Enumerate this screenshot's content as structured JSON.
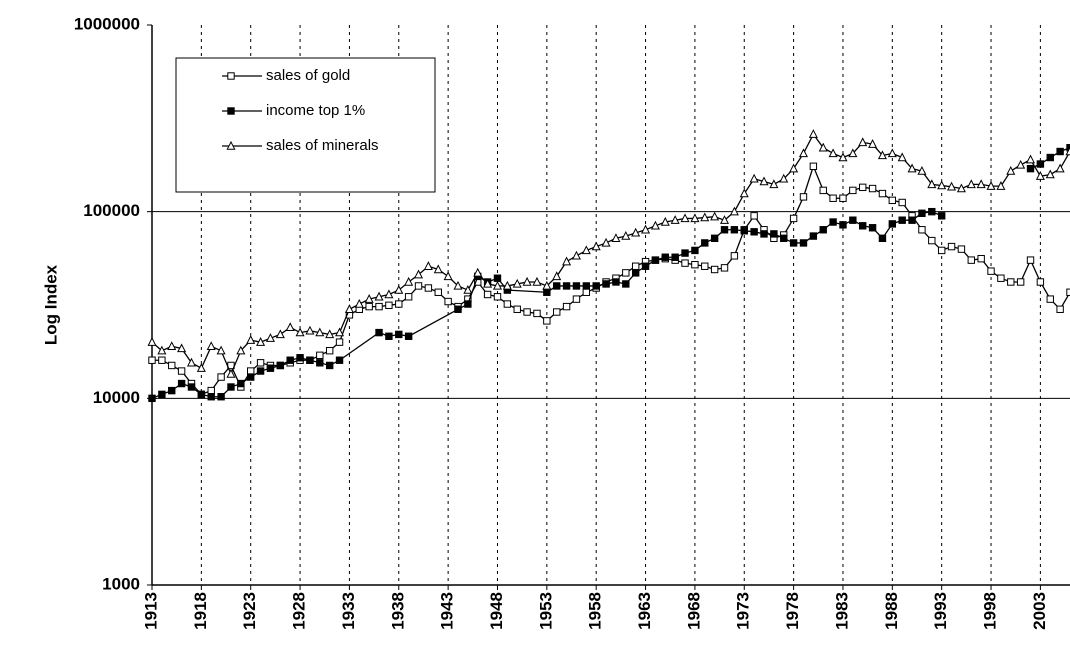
{
  "chart_data": {
    "type": "line",
    "y_label": "Log Index",
    "log_scale": true,
    "grid": true,
    "x": [
      1913,
      1914,
      1915,
      1916,
      1917,
      1918,
      1919,
      1920,
      1921,
      1922,
      1923,
      1924,
      1925,
      1926,
      1927,
      1928,
      1929,
      1930,
      1931,
      1932,
      1933,
      1934,
      1935,
      1936,
      1937,
      1938,
      1939,
      1940,
      1941,
      1942,
      1943,
      1944,
      1945,
      1946,
      1947,
      1948,
      1949,
      1950,
      1951,
      1952,
      1953,
      1954,
      1955,
      1956,
      1957,
      1958,
      1959,
      1960,
      1961,
      1962,
      1963,
      1964,
      1965,
      1966,
      1967,
      1968,
      1969,
      1970,
      1971,
      1972,
      1973,
      1974,
      1975,
      1976,
      1977,
      1978,
      1979,
      1980,
      1981,
      1982,
      1983,
      1984,
      1985,
      1986,
      1987,
      1988,
      1989,
      1990,
      1991,
      1992,
      1993,
      1994,
      1995,
      1996,
      1997,
      1998,
      1999,
      2000,
      2001,
      2002,
      2003,
      2004,
      2005,
      2006
    ],
    "xlim": [
      1913,
      2006
    ],
    "xticks": [
      1913,
      1918,
      1923,
      1928,
      1933,
      1938,
      1943,
      1948,
      1953,
      1958,
      1963,
      1968,
      1973,
      1978,
      1983,
      1988,
      1993,
      1998,
      2003
    ],
    "ylim": [
      1000,
      1000000
    ],
    "yticks": [
      1000,
      10000,
      100000,
      1000000
    ],
    "series": [
      {
        "name": "sales of gold",
        "color": "#000000",
        "marker": "square-open",
        "values": [
          16000,
          16000,
          15000,
          14000,
          12000,
          10500,
          11000,
          13000,
          15000,
          11500,
          14000,
          15500,
          15000,
          15000,
          15500,
          16000,
          16000,
          17000,
          18000,
          20000,
          28000,
          30000,
          31000,
          31000,
          31500,
          32000,
          35000,
          40000,
          39000,
          37000,
          33000,
          31000,
          34000,
          42000,
          36000,
          35000,
          32000,
          30000,
          29000,
          28500,
          26000,
          29000,
          31000,
          34000,
          37000,
          39000,
          42000,
          44000,
          47000,
          51000,
          54000,
          55000,
          56000,
          55000,
          53000,
          52000,
          51000,
          49000,
          50000,
          58000,
          80000,
          95000,
          80000,
          72000,
          75000,
          92000,
          120000,
          175000,
          130000,
          118000,
          118000,
          130000,
          135000,
          133000,
          125000,
          115000,
          112000,
          95000,
          80000,
          70000,
          62000,
          65000,
          63000,
          55000,
          56000,
          48000,
          44000,
          42000,
          42000,
          55000,
          42000,
          34000,
          30000,
          37000
        ]
      },
      {
        "name": "income top 1%",
        "color": "#000000",
        "marker": "square-filled",
        "x": [
          1913,
          1914,
          1915,
          1916,
          1917,
          1918,
          1919,
          1920,
          1921,
          1922,
          1923,
          1924,
          1925,
          1926,
          1927,
          1928,
          1929,
          1930,
          1931,
          1932,
          1936,
          1937,
          1938,
          1939,
          1944,
          1945,
          1946,
          1947,
          1948,
          1949,
          1953,
          1954,
          1955,
          1956,
          1957,
          1958,
          1959,
          1960,
          1961,
          1962,
          1963,
          1964,
          1965,
          1966,
          1967,
          1968,
          1969,
          1970,
          1971,
          1972,
          1973,
          1974,
          1975,
          1976,
          1977,
          1978,
          1979,
          1980,
          1981,
          1982,
          1983,
          1984,
          1985,
          1986,
          1987,
          1988,
          1989,
          1990,
          1991,
          1992,
          1993,
          1997,
          2002,
          2003,
          2004,
          2005,
          2006
        ],
        "values": [
          10000,
          10500,
          11000,
          12000,
          11500,
          10500,
          10200,
          10200,
          11500,
          12000,
          13000,
          14000,
          14500,
          15000,
          16000,
          16500,
          16000,
          15500,
          15000,
          16000,
          22500,
          21500,
          22000,
          21500,
          30000,
          32000,
          45000,
          42000,
          44000,
          38000,
          37000,
          40000,
          40000,
          40000,
          40000,
          40000,
          41000,
          42000,
          41000,
          47000,
          51000,
          55000,
          57000,
          57000,
          60000,
          62000,
          68000,
          72000,
          80000,
          80000,
          79000,
          78000,
          76000,
          76000,
          72000,
          68000,
          68000,
          74000,
          80000,
          88000,
          85000,
          90000,
          84000,
          82000,
          72000,
          86000,
          90000,
          90000,
          98000,
          100000,
          95000,
          null,
          170000,
          180000,
          195000,
          210000,
          220000
        ]
      },
      {
        "name": "sales of minerals",
        "color": "#000000",
        "marker": "triangle-open",
        "values": [
          20000,
          18000,
          19000,
          18500,
          15500,
          14500,
          19000,
          18000,
          13500,
          18000,
          20500,
          20000,
          21000,
          22000,
          24000,
          22500,
          23000,
          22500,
          22000,
          22500,
          30000,
          32000,
          34000,
          35000,
          36000,
          38000,
          42000,
          46000,
          51000,
          49000,
          45000,
          40000,
          38000,
          47000,
          41000,
          40000,
          40000,
          41000,
          42000,
          42000,
          40000,
          45000,
          54000,
          58000,
          62000,
          65000,
          68000,
          72000,
          74000,
          77000,
          80000,
          84000,
          88000,
          90000,
          92000,
          92000,
          93000,
          94000,
          90000,
          100000,
          125000,
          150000,
          145000,
          140000,
          150000,
          170000,
          205000,
          260000,
          220000,
          205000,
          195000,
          205000,
          235000,
          230000,
          200000,
          205000,
          195000,
          170000,
          165000,
          140000,
          138000,
          136000,
          133000,
          140000,
          140000,
          137000,
          137000,
          165000,
          178000,
          190000,
          155000,
          158000,
          170000,
          210000
        ]
      }
    ]
  }
}
